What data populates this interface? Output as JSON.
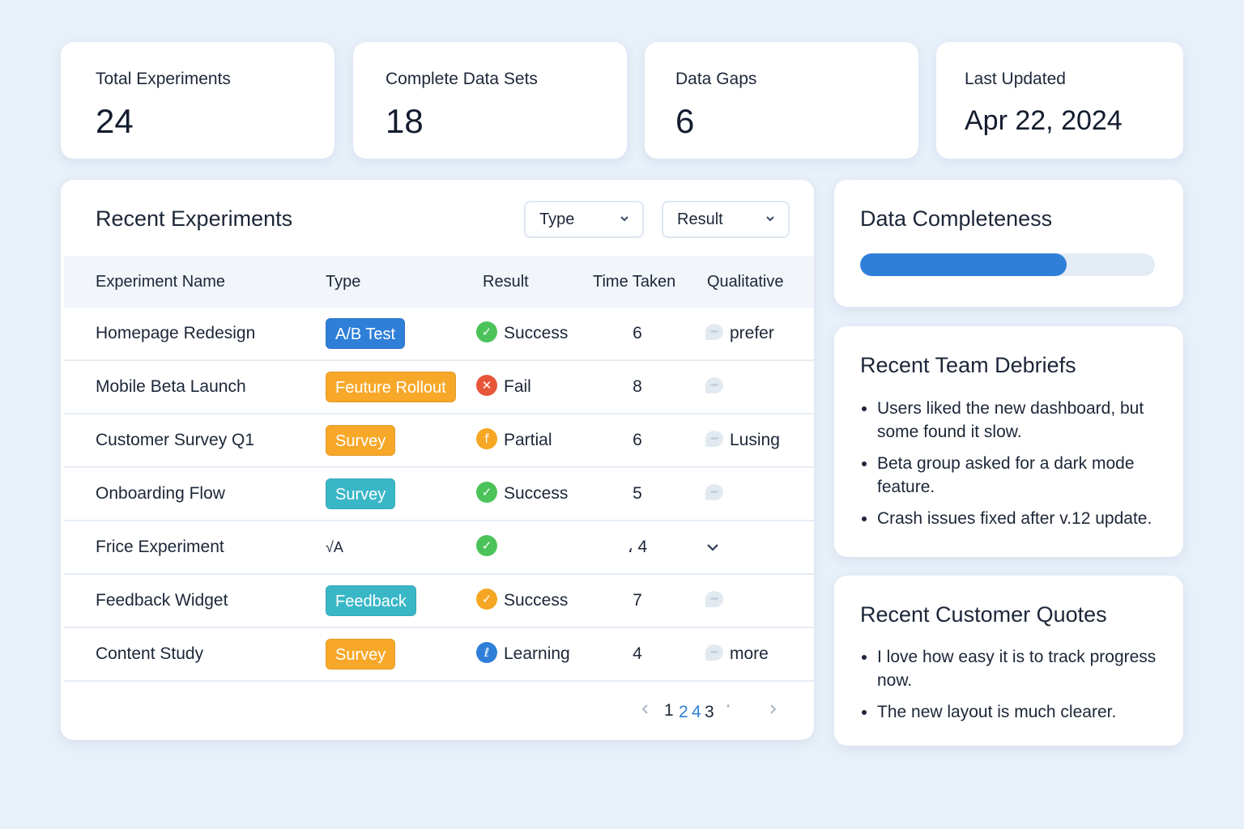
{
  "stats": [
    {
      "label": "Total Experiments",
      "value": "24"
    },
    {
      "label": "Complete Data Sets",
      "value": "18"
    },
    {
      "label": "Data Gaps",
      "value": "6"
    },
    {
      "label": "Last Updated",
      "value": "Apr 22, 2024"
    }
  ],
  "experiments": {
    "title": "Recent Experiments",
    "filters": {
      "type_label": "Type",
      "result_label": "Result"
    },
    "columns": [
      "Experiment Name",
      "Type",
      "Result",
      "Time Taken",
      "Qualitative"
    ],
    "rows": [
      {
        "name": "Homepage Redesign",
        "type": "A/B Test",
        "type_color": "#2f7fd8",
        "result": "Success",
        "result_icon": "check-icon",
        "result_color": "#4cc35a",
        "result_glyph": "✓",
        "time": "6",
        "qual": "prefer"
      },
      {
        "name": "Mobile Beta Launch",
        "type": "Feuture Rollout",
        "type_color": "#f7a829",
        "result": "Fail",
        "result_icon": "x-icon",
        "result_color": "#e8563a",
        "result_glyph": "✕",
        "time": "8",
        "qual": ""
      },
      {
        "name": "Customer Survey Q1",
        "type": "Survey",
        "type_color": "#f7a829",
        "result": "Partial",
        "result_icon": "partial-icon",
        "result_color": "#f5a623",
        "result_glyph": "f",
        "time": "6",
        "qual": "Lusing"
      },
      {
        "name": "Onboarding Flow",
        "type": "Survey",
        "type_color": "#3ab7c7",
        "result": "Success",
        "result_icon": "check-icon",
        "result_color": "#4cc35a",
        "result_glyph": "✓",
        "time": "5",
        "qual": ""
      },
      {
        "name": "Frice Experiment",
        "type": "√A",
        "type_color": "",
        "result": "",
        "result_icon": "check-icon",
        "result_color": "#4cc35a",
        "result_glyph": "✓",
        "time": "، 4",
        "qual": ""
      },
      {
        "name": "Feedback Widget",
        "type": "Feedback",
        "type_color": "#3ab7c7",
        "result": "Success",
        "result_icon": "check-icon",
        "result_color": "#f5a623",
        "result_glyph": "✓",
        "time": "7",
        "qual": ""
      },
      {
        "name": "Content Study",
        "type": "Survey",
        "type_color": "#f7a829",
        "result": "Learning",
        "result_icon": "learning-icon",
        "result_color": "#2f7fd8",
        "result_glyph": "ℓ",
        "time": "4",
        "qual": "more"
      }
    ],
    "pagination": {
      "p1": "1",
      "p2": "2",
      "p3": "4",
      "p4": "3"
    }
  },
  "completeness": {
    "title": "Data Completeness",
    "percent": 70,
    "bar_color": "#2f7fd8"
  },
  "debriefs": {
    "title": "Recent Team Debriefs",
    "items": [
      "Users liked the new dashboard, but some found it slow.",
      "Beta group asked for a dark mode feature.",
      "Crash issues fixed after v.12 update."
    ]
  },
  "quotes": {
    "title": "Recent Customer Quotes",
    "items": [
      "I love how easy it is to track progress now.",
      "The new layout is much clearer."
    ]
  }
}
